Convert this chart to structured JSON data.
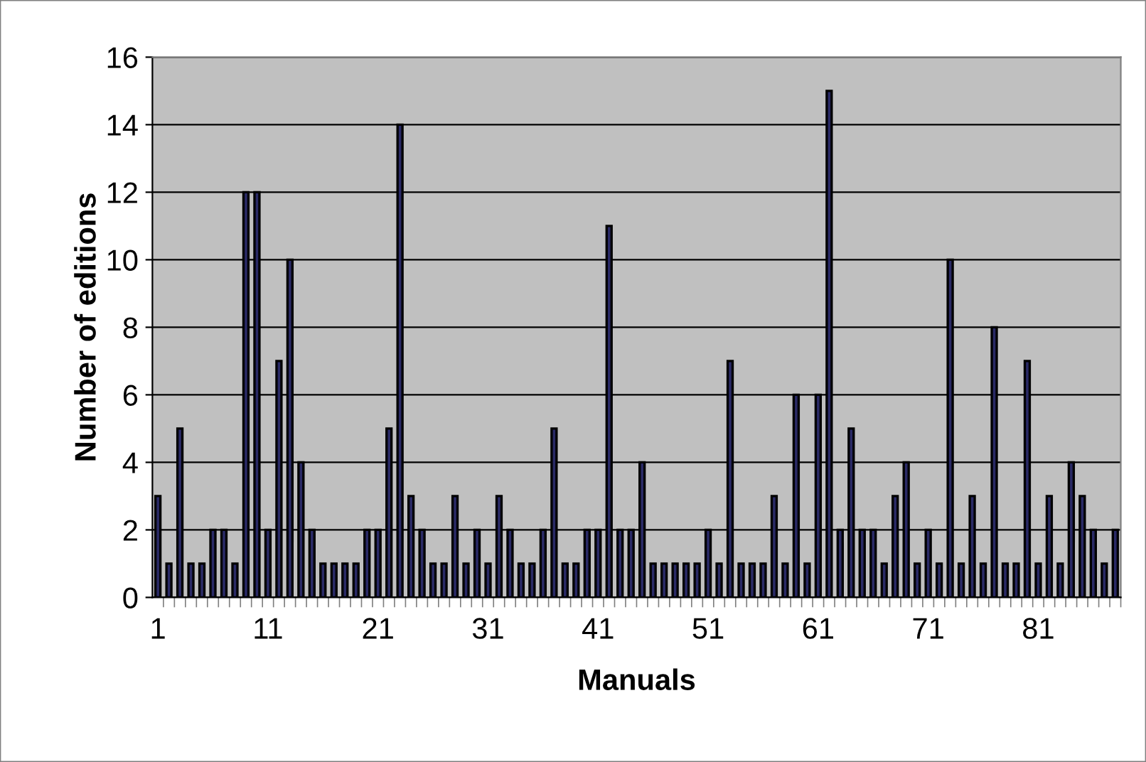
{
  "chart_data": {
    "type": "bar",
    "xlabel": "Manuals",
    "ylabel": "Number of editions",
    "categories": [
      "1",
      null,
      null,
      null,
      null,
      null,
      null,
      null,
      null,
      null,
      "11",
      null,
      null,
      null,
      null,
      null,
      null,
      null,
      null,
      null,
      "21",
      null,
      null,
      null,
      null,
      null,
      null,
      null,
      null,
      null,
      "31",
      null,
      null,
      null,
      null,
      null,
      null,
      null,
      null,
      null,
      "41",
      null,
      null,
      null,
      null,
      null,
      null,
      null,
      null,
      null,
      "51",
      null,
      null,
      null,
      null,
      null,
      null,
      null,
      null,
      null,
      "61",
      null,
      null,
      null,
      null,
      null,
      null,
      null,
      null,
      null,
      "71",
      null,
      null,
      null,
      null,
      null,
      null,
      null,
      null,
      null,
      "81",
      null,
      null,
      null,
      null,
      null,
      null,
      null
    ],
    "values": [
      3,
      1,
      5,
      1,
      1,
      2,
      2,
      1,
      12,
      12,
      2,
      7,
      10,
      4,
      2,
      1,
      1,
      1,
      1,
      2,
      2,
      5,
      14,
      3,
      2,
      1,
      1,
      3,
      1,
      2,
      1,
      3,
      2,
      1,
      1,
      2,
      5,
      1,
      1,
      2,
      2,
      11,
      2,
      2,
      4,
      1,
      1,
      1,
      1,
      1,
      2,
      1,
      7,
      1,
      1,
      1,
      3,
      1,
      6,
      1,
      6,
      15,
      2,
      5,
      2,
      2,
      1,
      3,
      4,
      1,
      2,
      1,
      10,
      1,
      3,
      1,
      8,
      1,
      1,
      7,
      1,
      3,
      1,
      4,
      3,
      2,
      1,
      2
    ],
    "color": "#2a2a66",
    "ylim": [
      0,
      16
    ],
    "yticks": [
      0,
      2,
      4,
      6,
      8,
      10,
      12,
      14,
      16
    ],
    "grid": "y",
    "legend": false
  }
}
